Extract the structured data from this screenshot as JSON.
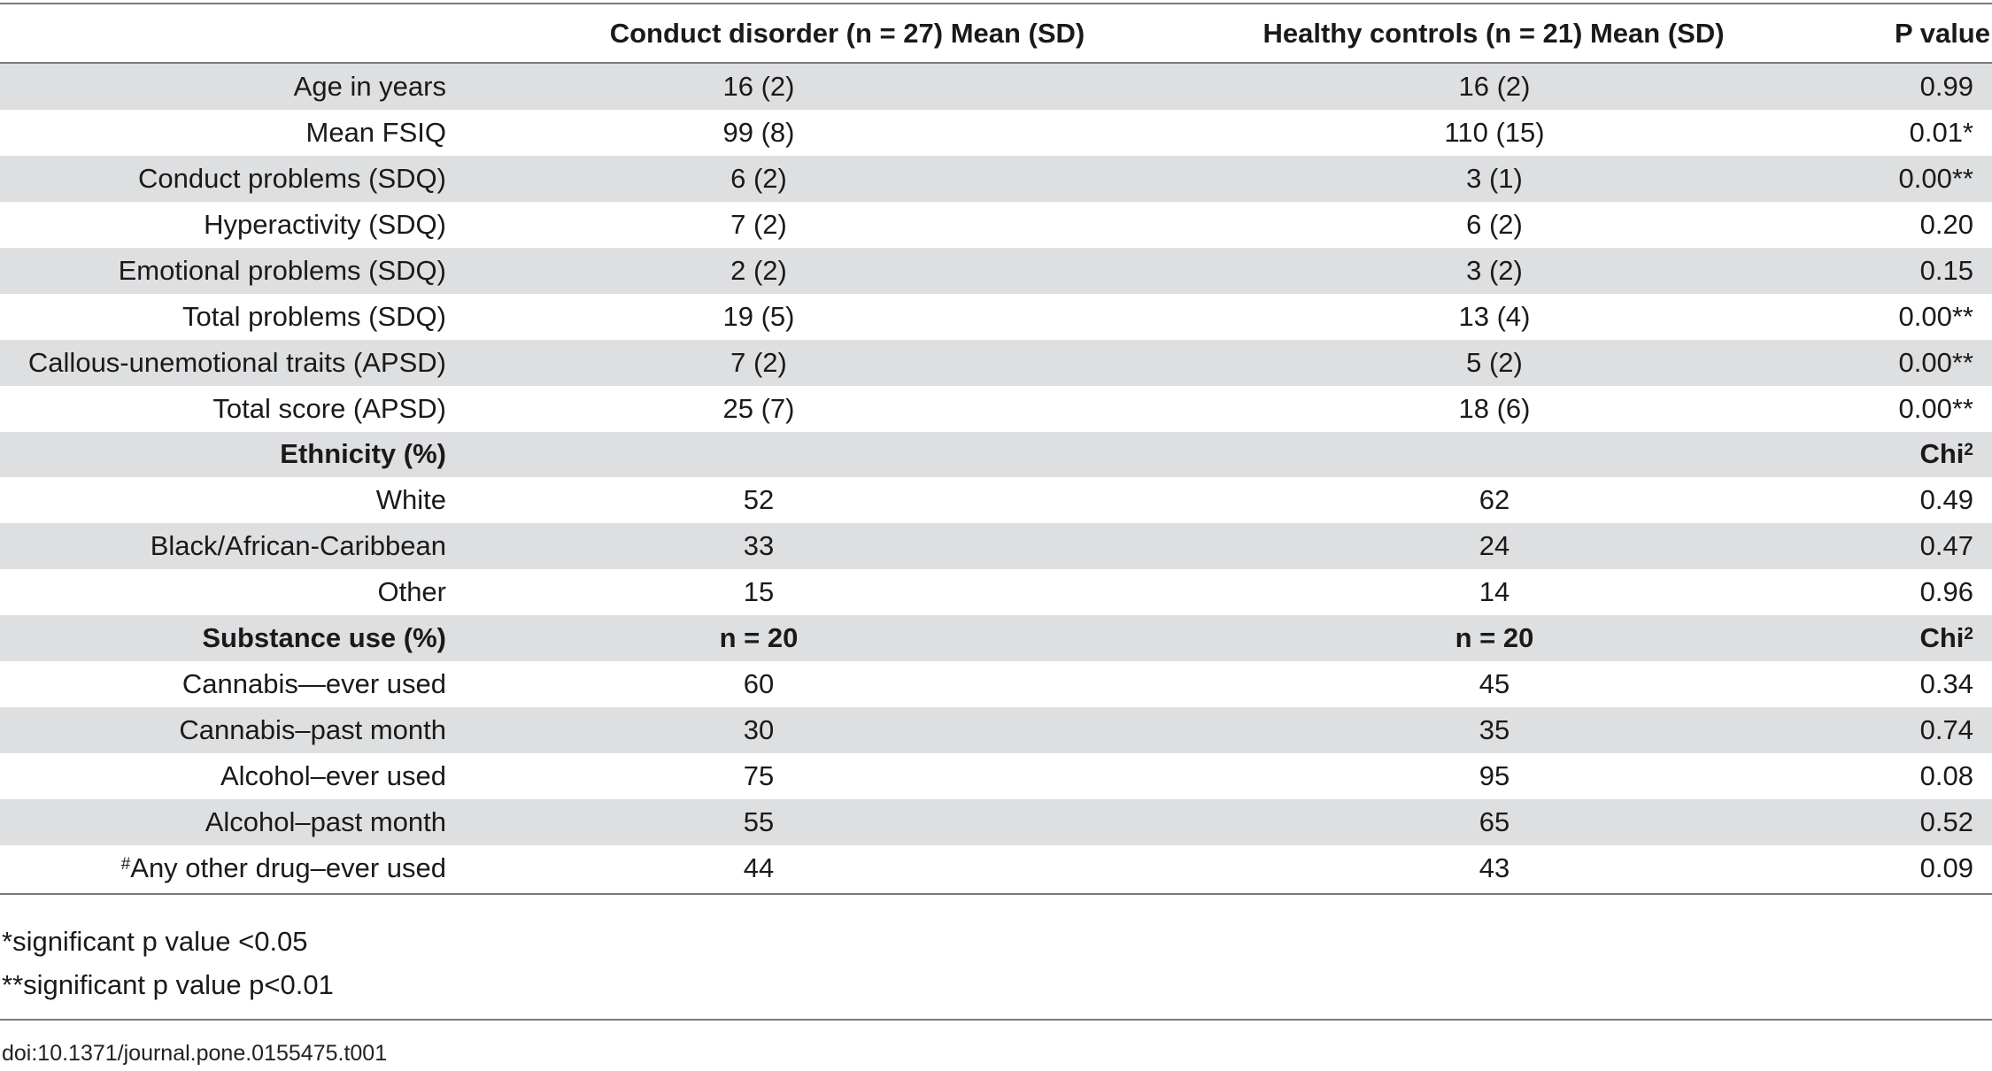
{
  "table": {
    "headers": {
      "label": "",
      "conduct_disorder": "Conduct disorder (n = 27) Mean (SD)",
      "healthy_controls": "Healthy controls (n = 21) Mean (SD)",
      "p_value": "P value"
    },
    "rows": [
      {
        "label": "Age in years",
        "cd": "16 (2)",
        "hc": "16 (2)",
        "p": "0.99"
      },
      {
        "label": "Mean FSIQ",
        "cd": "99 (8)",
        "hc": "110 (15)",
        "p": "0.01*"
      },
      {
        "label": "Conduct problems (SDQ)",
        "cd": "6 (2)",
        "hc": "3 (1)",
        "p": "0.00**"
      },
      {
        "label": "Hyperactivity (SDQ)",
        "cd": "7 (2)",
        "hc": "6 (2)",
        "p": "0.20"
      },
      {
        "label": "Emotional problems (SDQ)",
        "cd": "2 (2)",
        "hc": "3 (2)",
        "p": "0.15"
      },
      {
        "label": "Total problems (SDQ)",
        "cd": "19 (5)",
        "hc": "13 (4)",
        "p": "0.00**"
      },
      {
        "label": "Callous-unemotional traits (APSD)",
        "cd": "7 (2)",
        "hc": "5 (2)",
        "p": "0.00**"
      },
      {
        "label": "Total score (APSD)",
        "cd": "25 (7)",
        "hc": "18 (6)",
        "p": "0.00**"
      },
      {
        "label": "Ethnicity (%)",
        "cd": "",
        "hc": "",
        "p": "Chi",
        "p_sup": "2"
      },
      {
        "label": "White",
        "cd": "52",
        "hc": "62",
        "p": "0.49"
      },
      {
        "label": "Black/African-Caribbean",
        "cd": "33",
        "hc": "24",
        "p": "0.47"
      },
      {
        "label": "Other",
        "cd": "15",
        "hc": "14",
        "p": "0.96"
      },
      {
        "label": "Substance use (%)",
        "cd": "n = 20",
        "hc": "n = 20",
        "p": "Chi",
        "p_sup": "2"
      },
      {
        "label": "Cannabis—ever used",
        "cd": "60",
        "hc": "45",
        "p": "0.34"
      },
      {
        "label": "Cannabis–past month",
        "cd": "30",
        "hc": "35",
        "p": "0.74"
      },
      {
        "label": "Alcohol–ever used",
        "cd": "75",
        "hc": "95",
        "p": "0.08"
      },
      {
        "label": "Alcohol–past month",
        "cd": "55",
        "hc": "65",
        "p": "0.52"
      },
      {
        "label": "Any other drug–ever used",
        "label_sup": "#",
        "cd": "44",
        "hc": "43",
        "p": "0.09"
      }
    ]
  },
  "notes": {
    "note1": "*significant p value <0.05",
    "note2": "**significant p value p<0.01"
  },
  "doi": "doi:10.1371/journal.pone.0155475.t001",
  "colors": {
    "shade": "#dedfe1",
    "rule": "#7a7a7a"
  }
}
